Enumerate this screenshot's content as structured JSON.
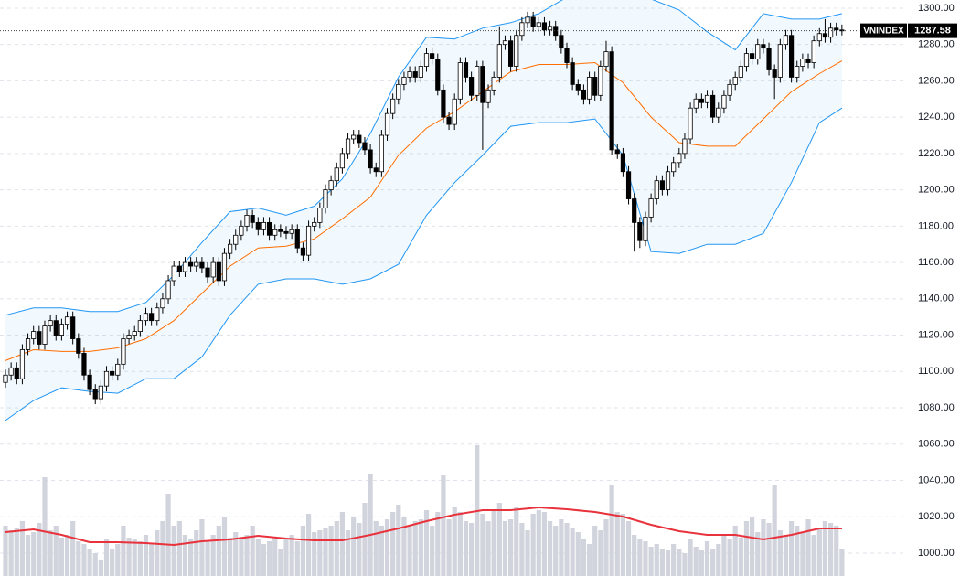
{
  "chart_data": {
    "type": "candlestick",
    "title": "VNINDEX",
    "open": [
      1094,
      1098,
      1102,
      1096,
      1112,
      1118,
      1122,
      1115,
      1125,
      1128,
      1120,
      1126,
      1130,
      1118,
      1110,
      1098,
      1090,
      1085,
      1092,
      1100,
      1098,
      1104,
      1118,
      1120,
      1122,
      1128,
      1132,
      1128,
      1135,
      1140,
      1150,
      1158,
      1155,
      1160,
      1158,
      1160,
      1157,
      1152,
      1160,
      1150,
      1165,
      1170,
      1175,
      1180,
      1186,
      1182,
      1178,
      1182,
      1175,
      1178,
      1177,
      1176,
      1178,
      1168,
      1164,
      1180,
      1182,
      1190,
      1200,
      1205,
      1212,
      1220,
      1228,
      1230,
      1226,
      1222,
      1212,
      1210,
      1230,
      1242,
      1250,
      1258,
      1262,
      1265,
      1262,
      1268,
      1275,
      1272,
      1255,
      1240,
      1236,
      1250,
      1270,
      1262,
      1252,
      1268,
      1248,
      1255,
      1262,
      1280,
      1282,
      1268,
      1285,
      1292,
      1295,
      1290,
      1292,
      1288,
      1290,
      1285,
      1278,
      1270,
      1258,
      1255,
      1250,
      1262,
      1252,
      1268,
      1276,
      1222,
      1220,
      1210,
      1195,
      1182,
      1172,
      1185,
      1195,
      1205,
      1200,
      1210,
      1215,
      1220,
      1228,
      1245,
      1250,
      1248,
      1252,
      1240,
      1245,
      1252,
      1258,
      1262,
      1268,
      1275,
      1272,
      1280,
      1278,
      1266,
      1262,
      1280,
      1285,
      1262,
      1268,
      1272,
      1270,
      1282,
      1286,
      1284,
      1289,
      1288
    ],
    "high": [
      1101,
      1105,
      1105,
      1115,
      1121,
      1125,
      1125,
      1128,
      1131,
      1131,
      1129,
      1133,
      1133,
      1121,
      1113,
      1101,
      1093,
      1095,
      1103,
      1103,
      1107,
      1121,
      1123,
      1125,
      1131,
      1135,
      1135,
      1138,
      1143,
      1153,
      1161,
      1161,
      1163,
      1163,
      1163,
      1163,
      1160,
      1163,
      1163,
      1168,
      1173,
      1178,
      1183,
      1189,
      1189,
      1185,
      1185,
      1185,
      1181,
      1181,
      1180,
      1181,
      1181,
      1171,
      1183,
      1185,
      1193,
      1203,
      1208,
      1215,
      1223,
      1231,
      1233,
      1233,
      1229,
      1225,
      1215,
      1233,
      1245,
      1253,
      1261,
      1265,
      1268,
      1268,
      1271,
      1278,
      1278,
      1275,
      1258,
      1243,
      1253,
      1273,
      1273,
      1265,
      1271,
      1271,
      1258,
      1265,
      1290,
      1285,
      1285,
      1288,
      1295,
      1298,
      1298,
      1295,
      1295,
      1293,
      1293,
      1288,
      1281,
      1273,
      1261,
      1258,
      1265,
      1265,
      1271,
      1282,
      1279,
      1225,
      1223,
      1213,
      1198,
      1185,
      1188,
      1198,
      1208,
      1208,
      1213,
      1218,
      1223,
      1231,
      1248,
      1253,
      1253,
      1255,
      1255,
      1248,
      1255,
      1261,
      1265,
      1271,
      1278,
      1278,
      1283,
      1283,
      1281,
      1269,
      1283,
      1288,
      1288,
      1271,
      1275,
      1275,
      1285,
      1289,
      1294,
      1292,
      1292,
      1291
    ],
    "low": [
      1091,
      1095,
      1093,
      1093,
      1109,
      1115,
      1112,
      1112,
      1122,
      1117,
      1117,
      1123,
      1115,
      1107,
      1095,
      1087,
      1082,
      1082,
      1089,
      1095,
      1095,
      1101,
      1115,
      1117,
      1119,
      1125,
      1125,
      1125,
      1132,
      1137,
      1147,
      1152,
      1152,
      1155,
      1155,
      1154,
      1149,
      1149,
      1147,
      1147,
      1162,
      1167,
      1172,
      1177,
      1179,
      1175,
      1175,
      1172,
      1172,
      1174,
      1173,
      1173,
      1165,
      1161,
      1161,
      1177,
      1179,
      1187,
      1197,
      1202,
      1209,
      1217,
      1225,
      1223,
      1219,
      1209,
      1207,
      1207,
      1227,
      1239,
      1247,
      1255,
      1259,
      1259,
      1259,
      1265,
      1269,
      1252,
      1237,
      1233,
      1233,
      1247,
      1259,
      1249,
      1249,
      1222,
      1245,
      1252,
      1259,
      1277,
      1265,
      1265,
      1282,
      1289,
      1287,
      1287,
      1285,
      1285,
      1282,
      1275,
      1267,
      1255,
      1252,
      1247,
      1247,
      1249,
      1249,
      1265,
      1219,
      1217,
      1207,
      1192,
      1166,
      1168,
      1169,
      1182,
      1192,
      1197,
      1197,
      1207,
      1212,
      1217,
      1225,
      1242,
      1245,
      1245,
      1237,
      1237,
      1242,
      1249,
      1255,
      1259,
      1265,
      1269,
      1269,
      1275,
      1263,
      1250,
      1259,
      1277,
      1259,
      1259,
      1265,
      1267,
      1267,
      1279,
      1281,
      1281,
      1285,
      1285
    ],
    "close": [
      1098,
      1102,
      1096,
      1112,
      1118,
      1122,
      1115,
      1125,
      1128,
      1120,
      1126,
      1130,
      1118,
      1110,
      1098,
      1090,
      1085,
      1092,
      1100,
      1098,
      1104,
      1118,
      1120,
      1122,
      1128,
      1132,
      1128,
      1135,
      1140,
      1150,
      1158,
      1155,
      1160,
      1158,
      1160,
      1157,
      1152,
      1160,
      1150,
      1165,
      1170,
      1175,
      1180,
      1186,
      1182,
      1178,
      1182,
      1175,
      1178,
      1177,
      1176,
      1178,
      1168,
      1164,
      1180,
      1182,
      1190,
      1200,
      1205,
      1212,
      1220,
      1228,
      1230,
      1226,
      1222,
      1212,
      1210,
      1230,
      1242,
      1250,
      1258,
      1262,
      1265,
      1262,
      1268,
      1275,
      1272,
      1255,
      1240,
      1236,
      1250,
      1270,
      1262,
      1252,
      1268,
      1248,
      1255,
      1262,
      1280,
      1282,
      1268,
      1285,
      1292,
      1295,
      1290,
      1292,
      1288,
      1290,
      1285,
      1278,
      1270,
      1258,
      1255,
      1250,
      1262,
      1252,
      1268,
      1276,
      1222,
      1220,
      1210,
      1195,
      1182,
      1172,
      1185,
      1195,
      1205,
      1200,
      1210,
      1215,
      1220,
      1228,
      1245,
      1250,
      1248,
      1252,
      1240,
      1245,
      1252,
      1258,
      1262,
      1268,
      1275,
      1272,
      1280,
      1278,
      1266,
      1262,
      1280,
      1285,
      1262,
      1268,
      1272,
      1270,
      1282,
      1286,
      1284,
      1289,
      1288,
      1287.58
    ],
    "volume": [
      55,
      50,
      52,
      60,
      45,
      48,
      58,
      108,
      50,
      55,
      42,
      45,
      60,
      38,
      35,
      30,
      25,
      18,
      40,
      30,
      35,
      55,
      42,
      40,
      38,
      45,
      35,
      50,
      60,
      90,
      55,
      60,
      45,
      40,
      50,
      62,
      38,
      45,
      55,
      65,
      42,
      48,
      40,
      45,
      55,
      40,
      35,
      38,
      42,
      30,
      40,
      45,
      38,
      55,
      68,
      48,
      50,
      52,
      55,
      60,
      70,
      50,
      65,
      58,
      80,
      112,
      60,
      55,
      62,
      70,
      78,
      65,
      55,
      60,
      62,
      72,
      55,
      70,
      110,
      62,
      75,
      70,
      60,
      58,
      143,
      68,
      60,
      72,
      80,
      60,
      62,
      75,
      58,
      50,
      68,
      72,
      70,
      60,
      55,
      62,
      58,
      52,
      48,
      40,
      35,
      55,
      50,
      62,
      100,
      70,
      68,
      60,
      45,
      40,
      38,
      32,
      35,
      30,
      28,
      35,
      30,
      25,
      40,
      32,
      28,
      38,
      30,
      35,
      45,
      40,
      55,
      42,
      60,
      65,
      48,
      62,
      58,
      100,
      50,
      45,
      60,
      55,
      48,
      62,
      45,
      52,
      60,
      58,
      55,
      30
    ],
    "bands": {
      "x": [
        0,
        5,
        10,
        15,
        20,
        25,
        30,
        35,
        40,
        45,
        50,
        55,
        60,
        65,
        70,
        75,
        80,
        85,
        90,
        95,
        100,
        105,
        110,
        115,
        120,
        125,
        130,
        135,
        140,
        145,
        149
      ],
      "upper": [
        1131,
        1135,
        1135,
        1133,
        1133,
        1138,
        1153,
        1171,
        1188,
        1190,
        1186,
        1191,
        1206,
        1231,
        1262,
        1284,
        1283,
        1289,
        1292,
        1297,
        1306,
        1306,
        1306,
        1305,
        1299,
        1287,
        1277,
        1297,
        1294,
        1294,
        1297
      ],
      "middle": [
        1106,
        1112,
        1111,
        1111,
        1113,
        1118,
        1128,
        1143,
        1158,
        1168,
        1169,
        1173,
        1184,
        1196,
        1219,
        1234,
        1243,
        1254,
        1265,
        1269,
        1269,
        1270,
        1259,
        1240,
        1226,
        1224,
        1224,
        1239,
        1254,
        1264,
        1271
      ],
      "lower": [
        1073,
        1084,
        1091,
        1089,
        1088,
        1096,
        1096,
        1108,
        1131,
        1148,
        1151,
        1151,
        1148,
        1151,
        1159,
        1186,
        1204,
        1219,
        1235,
        1237,
        1237,
        1239,
        1219,
        1166,
        1165,
        1170,
        1170,
        1176,
        1204,
        1237,
        1245
      ]
    },
    "volume_ma": {
      "x": [
        0,
        5,
        10,
        15,
        20,
        25,
        30,
        35,
        40,
        45,
        50,
        55,
        60,
        65,
        70,
        75,
        80,
        85,
        90,
        95,
        100,
        105,
        110,
        115,
        120,
        125,
        130,
        135,
        140,
        145,
        149
      ],
      "values": [
        48,
        51,
        45,
        37,
        37,
        36,
        34,
        38,
        40,
        44,
        41,
        39,
        39,
        45,
        52,
        60,
        67,
        72,
        72,
        75,
        73,
        70,
        65,
        56,
        49,
        45,
        45,
        40,
        45,
        52,
        52
      ]
    },
    "ylim": [
      987.4,
      1304.5
    ],
    "volume_lim": [
      0,
      630
    ],
    "yticks": [
      {
        "value": 1000,
        "label": "1000.00"
      },
      {
        "value": 1020,
        "label": "1020.00"
      },
      {
        "value": 1040,
        "label": "1040.00"
      },
      {
        "value": 1060,
        "label": "1060.00"
      },
      {
        "value": 1080,
        "label": "1080.00"
      },
      {
        "value": 1100,
        "label": "1100.00"
      },
      {
        "value": 1120,
        "label": "1120.00"
      },
      {
        "value": 1140,
        "label": "1140.00"
      },
      {
        "value": 1160,
        "label": "1160.00"
      },
      {
        "value": 1180,
        "label": "1180.00"
      },
      {
        "value": 1200,
        "label": "1200.00"
      },
      {
        "value": 1220,
        "label": "1220.00"
      },
      {
        "value": 1240,
        "label": "1240.00"
      },
      {
        "value": 1260,
        "label": "1260.00"
      },
      {
        "value": 1280,
        "label": "1280.00"
      },
      {
        "value": 1300,
        "label": "1300.00"
      }
    ],
    "grid": true,
    "up_color": "#ffffff",
    "down_color": "#000000",
    "band_color": "#2196f3",
    "middle_color": "#ff6d00",
    "volume_color": "#d1d4dc",
    "volume_ma_color": "#e8323c"
  }
}
